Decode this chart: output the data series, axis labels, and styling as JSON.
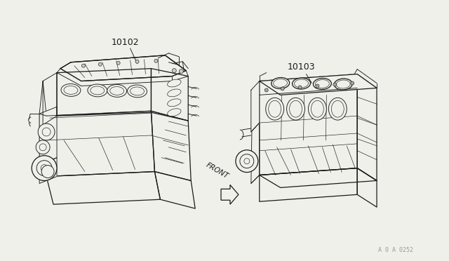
{
  "bg_color": "#f0f0eb",
  "line_color": "#1a1a1a",
  "label_color": "#1a1a1a",
  "part1_label": "10102",
  "part2_label": "10103",
  "front_label": "FRONT",
  "watermark": "A 0 A 0252",
  "fig_width": 6.4,
  "fig_height": 3.72,
  "dpi": 100,
  "lw_main": 0.9,
  "lw_med": 0.65,
  "lw_thin": 0.45,
  "lw_xtra": 0.3
}
